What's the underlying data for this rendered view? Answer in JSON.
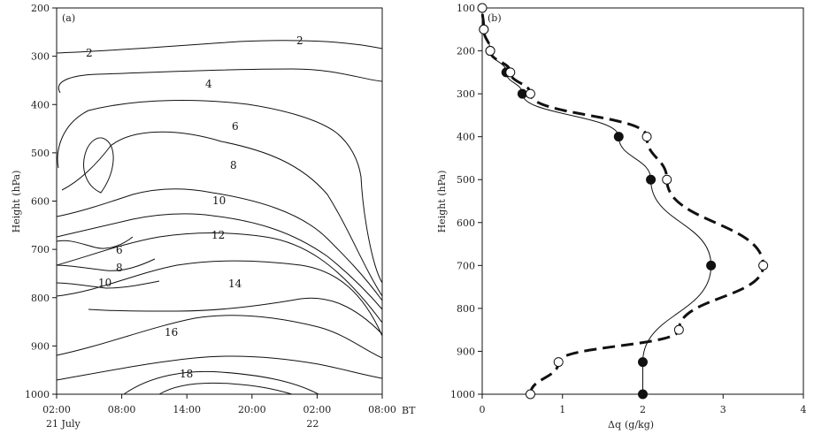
{
  "chart_data": [
    {
      "type": "contour",
      "panel_label": "(a)",
      "ylabel": "Height (hPa)",
      "x_ticks": [
        "02:00",
        "08:00",
        "14:00",
        "20:00",
        "02:00",
        "08:00"
      ],
      "x_unit": "BT",
      "x_date_labels": [
        {
          "text": "21  July",
          "at_tick": 0
        },
        {
          "text": "22",
          "at_tick": 4
        }
      ],
      "ylim": [
        1000,
        200
      ],
      "y_ticks": [
        200,
        300,
        400,
        500,
        600,
        700,
        800,
        900,
        1000
      ],
      "contour_levels": [
        "2",
        "2",
        "4",
        "6",
        "8",
        "10",
        "12",
        "14",
        "16",
        "18",
        "6",
        "8",
        "10"
      ]
    },
    {
      "type": "line",
      "panel_label": "(b)",
      "xlabel": "Δq",
      "xlabel_unit": "(g/kg)",
      "ylabel": "Height (hPa)",
      "xlim": [
        0,
        4
      ],
      "ylim": [
        1000,
        100
      ],
      "x_ticks": [
        0,
        1,
        2,
        3,
        4
      ],
      "y_ticks": [
        100,
        200,
        300,
        400,
        500,
        600,
        700,
        800,
        900,
        1000
      ],
      "series": [
        {
          "style": "solid-filled-circles",
          "x": [
            2.0,
            2.0,
            2.85,
            2.1,
            1.7,
            0.5,
            0.3,
            0.1,
            0.02
          ],
          "y": [
            1000,
            925,
            700,
            500,
            400,
            300,
            250,
            200,
            150
          ]
        },
        {
          "style": "dashed-open-circles",
          "x": [
            0.6,
            0.95,
            2.45,
            3.5,
            2.3,
            2.05,
            0.6,
            0.35,
            0.1,
            0.02,
            0.0
          ],
          "y": [
            1000,
            925,
            850,
            700,
            500,
            400,
            300,
            250,
            200,
            150,
            100
          ]
        }
      ]
    }
  ]
}
